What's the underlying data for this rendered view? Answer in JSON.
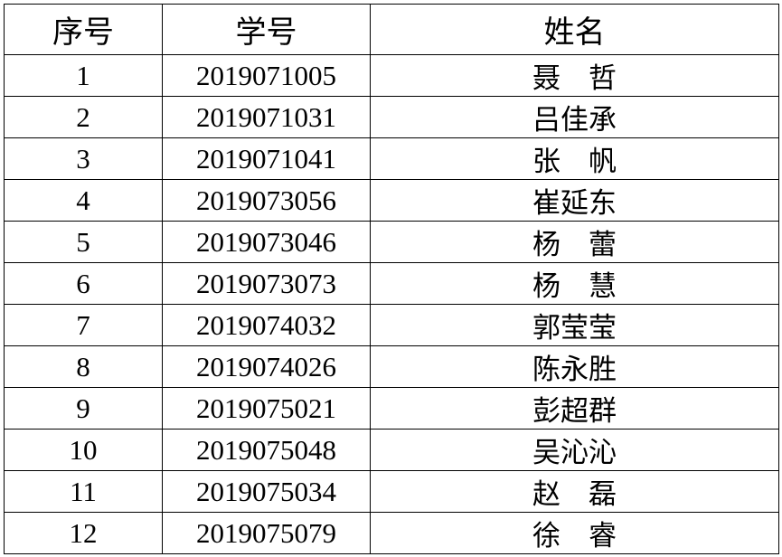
{
  "table": {
    "header": [
      "序号",
      "学号",
      "姓名"
    ],
    "rows": [
      [
        "1",
        "2019071005",
        "聂　哲"
      ],
      [
        "2",
        "2019071031",
        "吕佳承"
      ],
      [
        "3",
        "2019071041",
        "张　帆"
      ],
      [
        "4",
        "2019073056",
        "崔延东"
      ],
      [
        "5",
        "2019073046",
        "杨　蕾"
      ],
      [
        "6",
        "2019073073",
        "杨　慧"
      ],
      [
        "7",
        "2019074032",
        "郭莹莹"
      ],
      [
        "8",
        "2019074026",
        "陈永胜"
      ],
      [
        "9",
        "2019075021",
        "彭超群"
      ],
      [
        "10",
        "2019075048",
        "吴沁沁"
      ],
      [
        "11",
        "2019075034",
        "赵　磊"
      ],
      [
        "12",
        "2019075079",
        "徐　睿"
      ]
    ]
  }
}
